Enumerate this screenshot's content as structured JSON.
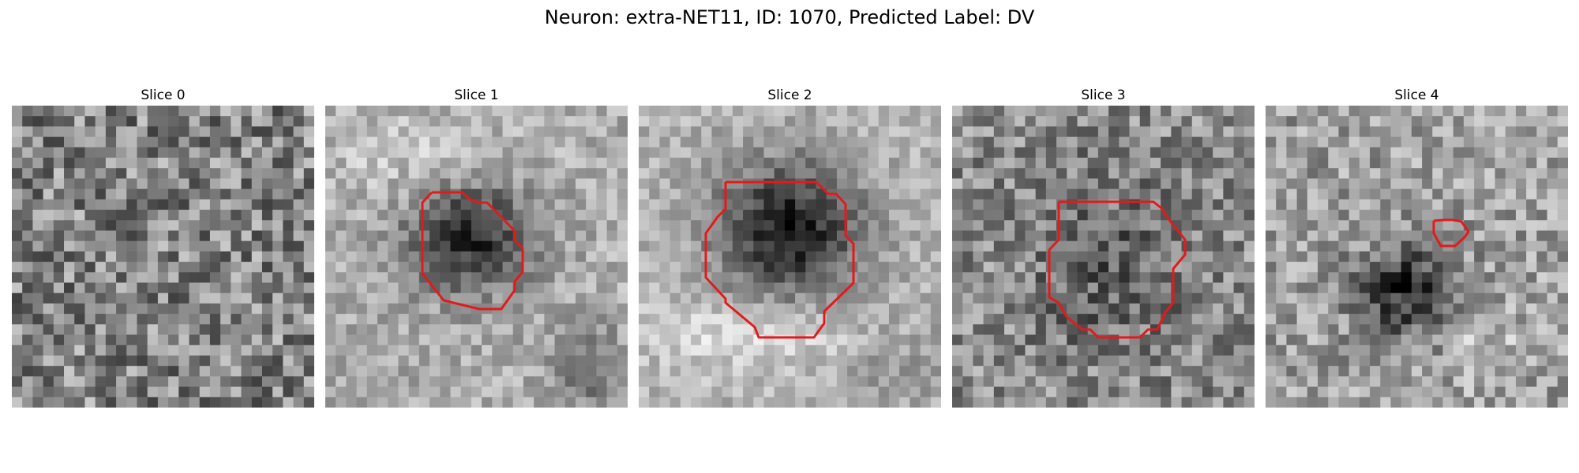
{
  "figure": {
    "title": "Neuron: extra-NET11, ID: 1070, Predicted Label: DV"
  },
  "panels": [
    {
      "title": "Slice 0",
      "has_contour": false
    },
    {
      "title": "Slice 1",
      "has_contour": true
    },
    {
      "title": "Slice 2",
      "has_contour": true
    },
    {
      "title": "Slice 3",
      "has_contour": true
    },
    {
      "title": "Slice 4",
      "has_contour": true
    }
  ],
  "colors": {
    "contour": "#e31a1c",
    "background": "#ffffff"
  },
  "colormap": "gray"
}
